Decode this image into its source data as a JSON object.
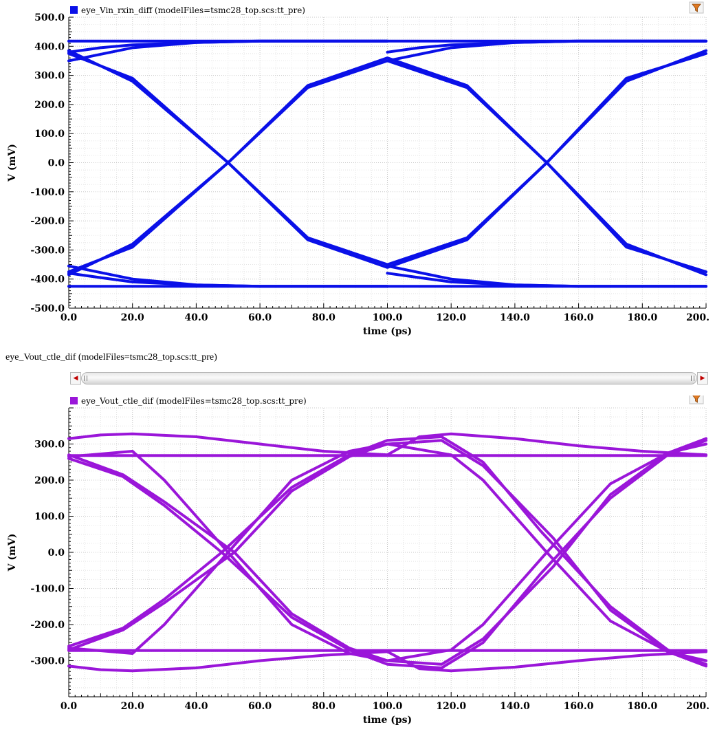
{
  "colors": {
    "panel1": "#0a10e8",
    "panel2": "#9a16d9"
  },
  "icons": {
    "filter": "funnel-filter-icon",
    "scroll_left": "arrow-left-icon",
    "scroll_right": "arrow-right-icon"
  },
  "panel2_header": {
    "title": "eye_Vout_ctle_dif (modelFiles=tsmc28_top.scs:tt_pre)"
  },
  "chart_data": [
    {
      "type": "line",
      "legend": "eye_Vin_rxin_diff (modelFiles=tsmc28_top.scs:tt_pre)",
      "xlabel": "time (ps)",
      "ylabel": "V (mV)",
      "xlim": [
        0,
        200
      ],
      "ylim": [
        -500,
        500
      ],
      "x_ticks": [
        "0.0",
        "20.0",
        "40.0",
        "60.0",
        "80.0",
        "100.0",
        "120.0",
        "140.0",
        "160.0",
        "180.0",
        "200."
      ],
      "y_ticks": [
        "500.0",
        "400.0",
        "300.0",
        "200.0",
        "100.0",
        "0.0",
        "-100.0",
        "-200.0",
        "-300.0",
        "-400.0",
        "-500.0"
      ],
      "grid": true,
      "legend_position": "top-left",
      "series": [
        {
          "x": [
            0,
            200
          ],
          "y": [
            418,
            418
          ]
        },
        {
          "x": [
            0,
            200
          ],
          "y": [
            -425,
            -425
          ]
        },
        {
          "x": [
            0,
            20,
            50,
            75,
            100,
            125,
            150,
            175,
            200
          ],
          "y": [
            385,
            280,
            0,
            -265,
            -360,
            -265,
            0,
            280,
            385
          ]
        },
        {
          "x": [
            0,
            20,
            50,
            75,
            100,
            125,
            150,
            175,
            200
          ],
          "y": [
            -385,
            -280,
            0,
            265,
            360,
            265,
            0,
            -280,
            -385
          ]
        },
        {
          "x": [
            0,
            20,
            50,
            75,
            100,
            125,
            150,
            175,
            200
          ],
          "y": [
            375,
            290,
            0,
            -258,
            -350,
            -258,
            0,
            290,
            375
          ]
        },
        {
          "x": [
            0,
            20,
            50,
            75,
            100,
            125,
            150,
            175,
            200
          ],
          "y": [
            -375,
            -290,
            0,
            258,
            350,
            258,
            0,
            -290,
            -375
          ]
        },
        {
          "x": [
            0,
            20,
            40,
            60,
            80,
            100
          ],
          "y": [
            350,
            395,
            413,
            418,
            418,
            418
          ]
        },
        {
          "x": [
            100,
            120,
            140,
            160,
            180,
            200
          ],
          "y": [
            350,
            395,
            413,
            418,
            418,
            418
          ]
        },
        {
          "x": [
            0,
            20,
            40,
            60,
            80,
            100
          ],
          "y": [
            -355,
            -400,
            -420,
            -425,
            -425,
            -425
          ]
        },
        {
          "x": [
            100,
            120,
            140,
            160,
            180,
            200
          ],
          "y": [
            -355,
            -400,
            -420,
            -425,
            -425,
            -425
          ]
        },
        {
          "x": [
            0,
            10,
            20,
            40,
            60,
            80,
            100
          ],
          "y": [
            -380,
            -395,
            -410,
            -420,
            -425,
            -425,
            -425
          ]
        },
        {
          "x": [
            100,
            110,
            120,
            140,
            160,
            180,
            200
          ],
          "y": [
            -380,
            -395,
            -410,
            -420,
            -425,
            -425,
            -425
          ]
        },
        {
          "x": [
            0,
            10,
            20,
            40,
            60,
            80,
            100
          ],
          "y": [
            380,
            395,
            405,
            413,
            418,
            418,
            418
          ]
        },
        {
          "x": [
            100,
            110,
            120,
            140,
            160,
            180,
            200
          ],
          "y": [
            380,
            395,
            405,
            413,
            418,
            418,
            418
          ]
        }
      ]
    },
    {
      "type": "line",
      "legend": "eye_Vout_ctle_dif (modelFiles=tsmc28_top.scs:tt_pre)",
      "xlabel": "time (ps)",
      "ylabel": "V (mV)",
      "xlim": [
        0,
        200
      ],
      "ylim": [
        -400,
        400
      ],
      "x_ticks": [
        "0.0",
        "20.0",
        "40.0",
        "60.0",
        "80.0",
        "100.0",
        "120.0",
        "140.0",
        "160.0",
        "180.0",
        "200."
      ],
      "y_ticks": [
        "300.0",
        "200.0",
        "100.0",
        "0.0",
        "-100.0",
        "-200.0",
        "-300.0"
      ],
      "grid": true,
      "legend_position": "top-left",
      "series": [
        {
          "x": [
            0,
            200
          ],
          "y": [
            268,
            268
          ]
        },
        {
          "x": [
            0,
            200
          ],
          "y": [
            -272,
            -272
          ]
        },
        {
          "x": [
            0,
            10,
            20,
            40,
            60,
            80,
            100,
            110,
            120,
            140,
            160,
            180,
            200
          ],
          "y": [
            315,
            325,
            328,
            320,
            300,
            280,
            270,
            320,
            328,
            315,
            295,
            280,
            270
          ]
        },
        {
          "x": [
            0,
            10,
            20,
            40,
            60,
            80,
            100,
            110,
            120,
            140,
            160,
            180,
            200
          ],
          "y": [
            -315,
            -325,
            -328,
            -320,
            -300,
            -285,
            -275,
            -322,
            -328,
            -318,
            -300,
            -285,
            -275
          ]
        },
        {
          "x": [
            0,
            17,
            30,
            48,
            70,
            88,
            100,
            117,
            130,
            148,
            170,
            188,
            200
          ],
          "y": [
            260,
            210,
            130,
            0,
            -180,
            -270,
            -310,
            -320,
            -250,
            -60,
            150,
            270,
            310
          ]
        },
        {
          "x": [
            0,
            17,
            30,
            52,
            70,
            88,
            100,
            117,
            130,
            152,
            170,
            188,
            200
          ],
          "y": [
            270,
            215,
            140,
            0,
            -170,
            -265,
            -300,
            -310,
            -240,
            -40,
            160,
            275,
            315
          ]
        },
        {
          "x": [
            0,
            20,
            30,
            50,
            70,
            88,
            100,
            120,
            130,
            150,
            170,
            188,
            200
          ],
          "y": [
            265,
            280,
            200,
            0,
            -200,
            -280,
            -300,
            -270,
            -200,
            0,
            190,
            275,
            300
          ]
        },
        {
          "x": [
            0,
            17,
            30,
            48,
            70,
            88,
            100,
            117,
            130,
            148,
            170,
            188,
            200
          ],
          "y": [
            -260,
            -210,
            -130,
            0,
            180,
            270,
            310,
            320,
            250,
            60,
            -150,
            -270,
            -310
          ]
        },
        {
          "x": [
            0,
            17,
            30,
            52,
            70,
            88,
            100,
            117,
            130,
            152,
            170,
            188,
            200
          ],
          "y": [
            -270,
            -215,
            -140,
            0,
            170,
            265,
            300,
            310,
            240,
            40,
            -160,
            -275,
            -315
          ]
        },
        {
          "x": [
            0,
            20,
            30,
            50,
            70,
            88,
            100,
            120,
            130,
            150,
            170,
            188,
            200
          ],
          "y": [
            -265,
            -280,
            -200,
            0,
            200,
            280,
            300,
            270,
            200,
            0,
            -190,
            -275,
            -300
          ]
        }
      ]
    }
  ]
}
